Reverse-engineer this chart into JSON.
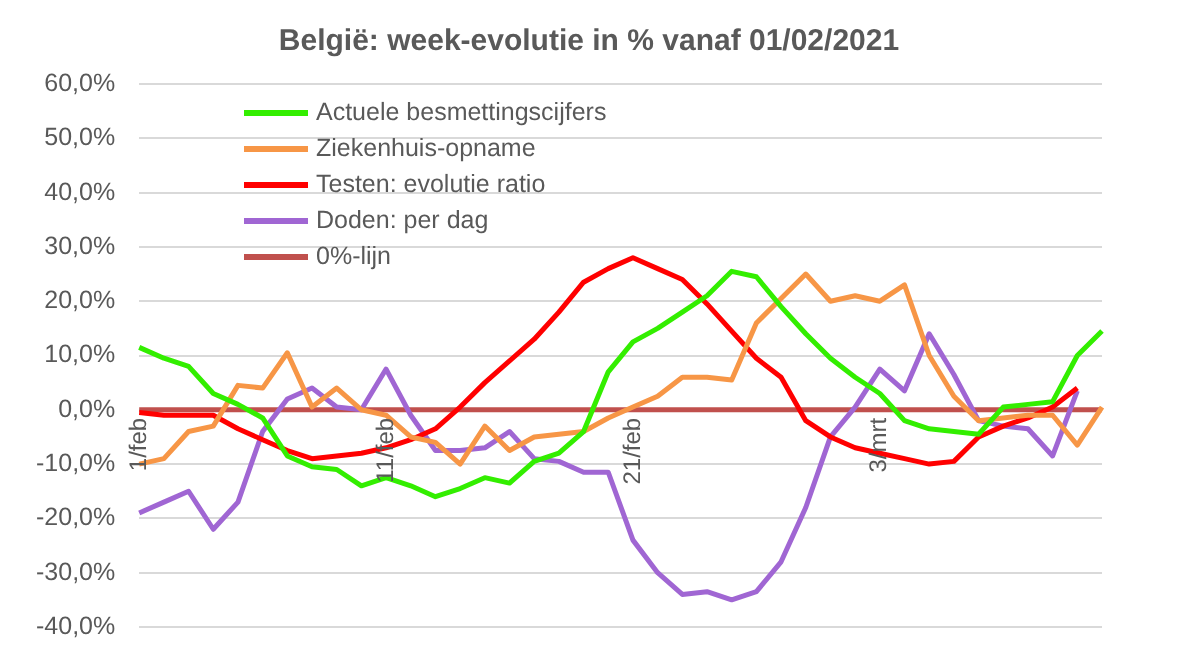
{
  "chart_data": {
    "type": "line",
    "title": "België: week-evolutie in %  vanaf 01/02/2021",
    "categories": [
      "1/feb",
      null,
      null,
      null,
      null,
      null,
      null,
      null,
      null,
      null,
      "11/feb",
      null,
      null,
      null,
      null,
      null,
      null,
      null,
      null,
      null,
      "21/feb",
      null,
      null,
      null,
      null,
      null,
      null,
      null,
      null,
      null,
      "3/mrt",
      null,
      null,
      null,
      null,
      null,
      null,
      null,
      null,
      null
    ],
    "series": [
      {
        "name": "Actuele besmettingscijfers",
        "color": "#33ee00",
        "values": [
          11.5,
          9.5,
          8,
          3,
          1,
          -1.5,
          -8.5,
          -10.5,
          -11,
          -14,
          -12.5,
          -14,
          -16,
          -14.5,
          -12.5,
          -13.5,
          -9.5,
          -8,
          -4,
          7,
          12.5,
          15,
          18,
          21,
          25.5,
          24.5,
          19,
          14,
          9.5,
          6,
          3,
          -2,
          -3.5,
          -4,
          -4.5,
          0.5,
          1,
          1.5,
          10,
          14.5
        ]
      },
      {
        "name": "Ziekenhuis-opname",
        "color": "#f79646",
        "values": [
          -10,
          -9,
          -4,
          -3,
          4.5,
          4,
          10.5,
          0.5,
          4,
          0,
          -1,
          -5,
          -6,
          -10,
          -3,
          -7.5,
          -5,
          -4.5,
          -4,
          -1.5,
          0.5,
          2.5,
          6,
          6,
          5.5,
          16,
          20.5,
          25,
          20,
          21,
          20,
          23,
          10,
          2.5,
          -2,
          -1.5,
          -1,
          -1,
          -6.5,
          0.5
        ]
      },
      {
        "name": "Testen: evolutie ratio",
        "color": "#ff0000",
        "values": [
          -0.5,
          -1,
          -1,
          -1,
          -3.5,
          -5.5,
          -7.5,
          -9,
          -8.5,
          -8,
          -7,
          -5.5,
          -3.5,
          0.5,
          5,
          9,
          13,
          18,
          23.5,
          26,
          28,
          26,
          24,
          19.5,
          14.5,
          9.5,
          6,
          -2,
          -5,
          -7,
          -8,
          -9,
          -10,
          -9.5,
          -5,
          -3,
          -1.5,
          0.5,
          4,
          null
        ]
      },
      {
        "name": "Doden: per dag",
        "color": "#a066d3",
        "values": [
          -19,
          -17,
          -15,
          -22,
          -17,
          -4,
          2,
          4,
          0.5,
          0,
          7.5,
          -1,
          -7.5,
          -7.5,
          -7,
          -4,
          -9,
          -9.5,
          -11.5,
          -11.5,
          -24,
          -30,
          -34,
          -33.5,
          -35,
          -33.5,
          -28,
          -18,
          -5,
          0.5,
          7.5,
          3.5,
          14,
          6.5,
          -2,
          -3,
          -3.5,
          -8.5,
          3.5,
          null
        ]
      },
      {
        "name": "0%-lijn",
        "color": "#c0504d",
        "values": [
          0,
          0,
          0,
          0,
          0,
          0,
          0,
          0,
          0,
          0,
          0,
          0,
          0,
          0,
          0,
          0,
          0,
          0,
          0,
          0,
          0,
          0,
          0,
          0,
          0,
          0,
          0,
          0,
          0,
          0,
          0,
          0,
          0,
          0,
          0,
          0,
          0,
          0,
          0,
          0
        ]
      }
    ],
    "ylim": [
      -40,
      60
    ],
    "yticks": [
      {
        "value": -40,
        "label": "-40,0%"
      },
      {
        "value": -30,
        "label": "-30,0%"
      },
      {
        "value": -20,
        "label": "-20,0%"
      },
      {
        "value": -10,
        "label": "-10,0%"
      },
      {
        "value": 0,
        "label": "0,0%"
      },
      {
        "value": 10,
        "label": "10,0%"
      },
      {
        "value": 20,
        "label": "20,0%"
      },
      {
        "value": 30,
        "label": "30,0%"
      },
      {
        "value": 40,
        "label": "40,0%"
      },
      {
        "value": 50,
        "label": "50,0%"
      },
      {
        "value": 60,
        "label": "60,0%"
      }
    ],
    "grid": "y",
    "legend": "top left",
    "marker": "none",
    "line_style": "solid"
  }
}
